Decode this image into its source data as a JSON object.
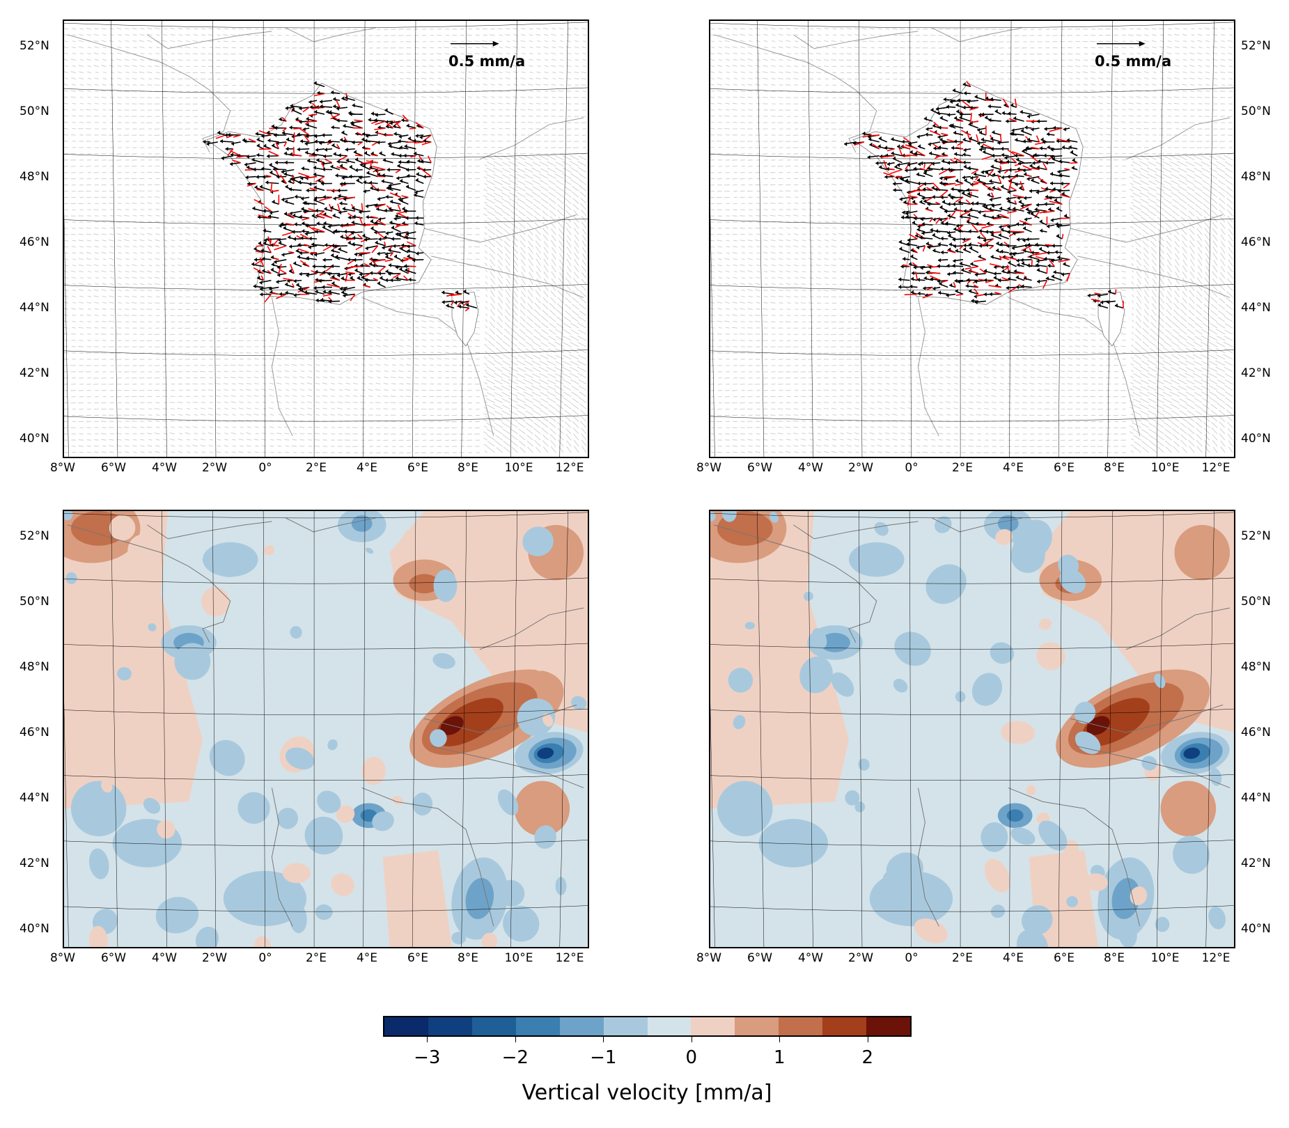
{
  "panels": [
    {
      "id": "top-left",
      "type": "vector"
    },
    {
      "id": "top-right",
      "type": "vector"
    },
    {
      "id": "bottom-left",
      "type": "contour"
    },
    {
      "id": "bottom-right",
      "type": "contour"
    }
  ],
  "reference_vector_label": "0.5 mm/a",
  "lat_labels": [
    "52°N",
    "50°N",
    "48°N",
    "46°N",
    "44°N",
    "42°N",
    "40°N"
  ],
  "lon_labels": [
    "8°W",
    "6°W",
    "4°W",
    "2°W",
    "0°",
    "2°E",
    "4°E",
    "6°E",
    "8°E",
    "10°E",
    "12°E"
  ],
  "colorbar": {
    "title": "Vertical velocity [mm/a]",
    "tick_labels": [
      "−3",
      "−2",
      "−1",
      "0",
      "1",
      "2"
    ],
    "tick_values": [
      -3,
      -2,
      -1,
      0,
      1,
      2
    ],
    "range": [
      -3.5,
      2.5
    ],
    "colors": [
      "#0a2a6b",
      "#0f3f7f",
      "#1d5f96",
      "#3a7fb0",
      "#6ea3c9",
      "#a8c9dd",
      "#d4e3ea",
      "#efd1c3",
      "#d99c7e",
      "#c26f4c",
      "#a3401b",
      "#6b1209"
    ]
  },
  "colors": {
    "background_vectors": "#cfcfcf",
    "model_vectors": "#000000",
    "observed_vectors": "#ff0000",
    "land_base": "#d4e3ea"
  }
}
